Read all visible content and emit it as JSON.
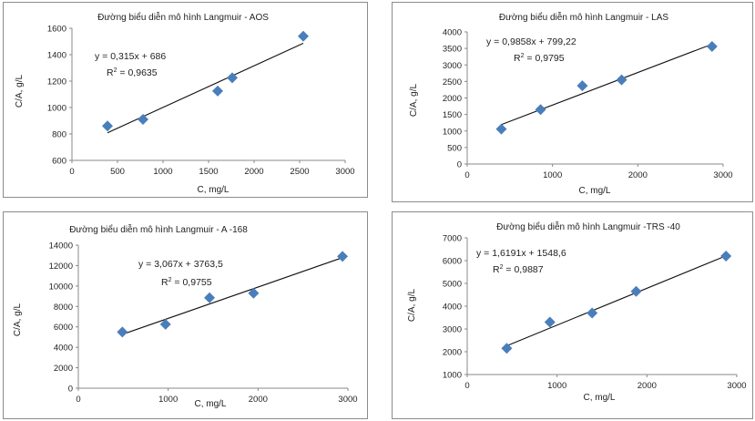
{
  "chart_data": [
    {
      "type": "scatter",
      "title": "Đường biểu diễn mô hình Langmuir  - AOS",
      "xlabel": "C, mg/L",
      "ylabel": "C/A, g/L",
      "xlim": [
        0,
        3000
      ],
      "ylim": [
        600,
        1600
      ],
      "x_ticks": [
        "0",
        "500",
        "1000",
        "1500",
        "2000",
        "2500",
        "3000"
      ],
      "y_ticks": [
        "600",
        "800",
        "1000",
        "1200",
        "1400",
        "1600"
      ],
      "equation": "y = 0,315x + 686",
      "r2_label": "R",
      "r2_value": " = 0,9635",
      "trendline": {
        "slope": 0.315,
        "intercept": 686
      },
      "points": [
        {
          "x": 390,
          "y": 860
        },
        {
          "x": 780,
          "y": 910
        },
        {
          "x": 1600,
          "y": 1125
        },
        {
          "x": 1760,
          "y": 1225
        },
        {
          "x": 2540,
          "y": 1540
        }
      ],
      "marker_color": "#4a7ebb",
      "grid": false
    },
    {
      "type": "scatter",
      "title": "Đường biểu diễn mô hình Langmuir  - LAS",
      "xlabel": "C, mg/L",
      "ylabel": "C/A, g/L",
      "xlim": [
        0,
        3000
      ],
      "ylim": [
        0,
        4000
      ],
      "x_ticks": [
        "0",
        "1000",
        "2000",
        "3000"
      ],
      "y_ticks": [
        "0",
        "500",
        "1000",
        "1500",
        "2000",
        "2500",
        "3000",
        "3500",
        "4000"
      ],
      "equation": "y = 0,9858x + 799,22",
      "r2_label": "R",
      "r2_value": " = 0,9795",
      "trendline": {
        "slope": 0.9858,
        "intercept": 799.22
      },
      "points": [
        {
          "x": 400,
          "y": 1060
        },
        {
          "x": 860,
          "y": 1650
        },
        {
          "x": 1350,
          "y": 2370
        },
        {
          "x": 1810,
          "y": 2550
        },
        {
          "x": 2870,
          "y": 3560
        }
      ],
      "marker_color": "#4a7ebb",
      "grid": false
    },
    {
      "type": "scatter",
      "title": "Đường biểu diễn mô hình Langmuir  - A -168",
      "xlabel": "C, mg/L",
      "ylabel": "C/A, g/L",
      "xlim": [
        0,
        3000
      ],
      "ylim": [
        0,
        14000
      ],
      "x_ticks": [
        "0",
        "1000",
        "2000",
        "3000"
      ],
      "y_ticks": [
        "0",
        "2000",
        "4000",
        "6000",
        "8000",
        "10000",
        "12000",
        "14000"
      ],
      "equation": "y = 3,067x + 3763,5",
      "r2_label": "R",
      "r2_value": " = 0,9755",
      "trendline": {
        "slope": 3.067,
        "intercept": 3763.5
      },
      "points": [
        {
          "x": 490,
          "y": 5500
        },
        {
          "x": 970,
          "y": 6250
        },
        {
          "x": 1460,
          "y": 8850
        },
        {
          "x": 1950,
          "y": 9300
        },
        {
          "x": 2940,
          "y": 12900
        }
      ],
      "marker_color": "#4a7ebb",
      "grid": false
    },
    {
      "type": "scatter",
      "title": "Đường biểu diễn mô hình Langmuir -TRS -40",
      "xlabel": "C, mg/L",
      "ylabel": "C/A, g/L",
      "xlim": [
        0,
        3000
      ],
      "ylim": [
        1000,
        7000
      ],
      "x_ticks": [
        "0",
        "1000",
        "2000",
        "3000"
      ],
      "y_ticks": [
        "1000",
        "2000",
        "3000",
        "4000",
        "5000",
        "6000",
        "7000"
      ],
      "equation": "y = 1,6191x + 1548,6",
      "r2_label": "R",
      "r2_value": " = 0,9887",
      "trendline": {
        "slope": 1.6191,
        "intercept": 1548.6
      },
      "points": [
        {
          "x": 440,
          "y": 2150
        },
        {
          "x": 920,
          "y": 3300
        },
        {
          "x": 1390,
          "y": 3700
        },
        {
          "x": 1880,
          "y": 4650
        },
        {
          "x": 2880,
          "y": 6200
        }
      ],
      "marker_color": "#4a7ebb",
      "grid": false
    }
  ]
}
